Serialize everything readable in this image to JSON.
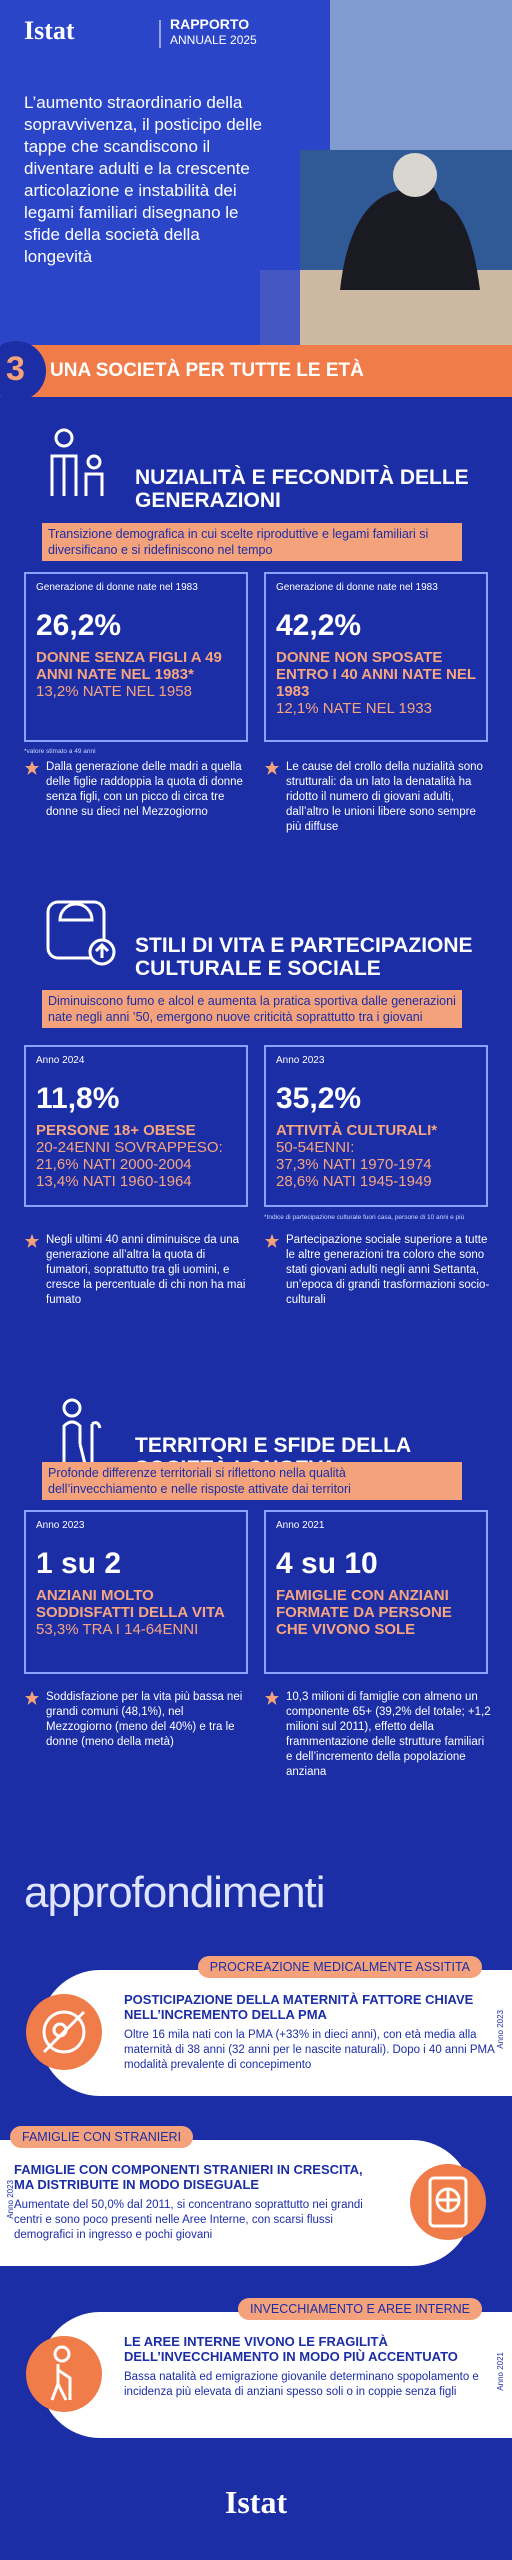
{
  "header": {
    "logo": "Istat",
    "report_title": "RAPPORTO",
    "report_subtitle": "ANNUALE 2025",
    "intro": "L’aumento straordinario della sopravvivenza, il posticipo delle tappe che scandiscono il diventare adulti e la crescente articolazione e instabilità dei legami familiari disegnano le sfide della società della longevità"
  },
  "banner": {
    "number": "3",
    "title": "UNA SOCIETÀ PER TUTTE LE ETÀ"
  },
  "sections": [
    {
      "title": "NUZIALITÀ E FECONDITÀ DELLE GENERAZIONI",
      "subtitle": "Transizione demografica in cui scelte riproduttive e legami familiari si diversificano e si ridefiniscono nel tempo",
      "boxes": [
        {
          "label": "Generazione di donne nate nel 1983",
          "big": "26,2%",
          "headline": "DONNE SENZA FIGLI A 49 ANNI NATE NEL 1983*",
          "details": [
            "13,2% NATE NEL 1958"
          ]
        },
        {
          "label": "Generazione di donne nate nel 1983",
          "big": "42,2%",
          "headline": "DONNE NON SPOSATE ENTRO I 40 ANNI NATE NEL 1983",
          "details": [
            "12,1% NATE NEL 1933"
          ]
        }
      ],
      "footnote": "*valore stimato a 49 anni",
      "bullets": [
        "Dalla generazione delle madri a quella delle figlie raddoppia la quota di donne senza figli, con un picco di circa tre donne su dieci nel Mezzogiorno",
        "Le cause del crollo della nuzialità sono strutturali: da un lato la denatalità ha ridotto il numero di giovani adulti, dall’altro le unioni libere sono sempre più diffuse"
      ]
    },
    {
      "title": "STILI DI VITA E PARTECIPAZIONE CULTURALE E SOCIALE",
      "subtitle": "Diminuiscono fumo e alcol e aumenta la pratica sportiva dalle generazioni nate negli anni ’50, emergono nuove criticità soprattutto tra i giovani",
      "boxes": [
        {
          "label": "Anno 2024",
          "big": "11,8%",
          "headline": "PERSONE 18+ OBESE",
          "details": [
            "20-24ENNI SOVRAPPESO:",
            "21,6% NATI 2000-2004",
            "13,4% NATI 1960-1964"
          ]
        },
        {
          "label": "Anno 2023",
          "big": "35,2%",
          "headline": "ATTIVITÀ CULTURALI*",
          "details": [
            "50-54ENNI:",
            "37,3% NATI 1970-1974",
            "28,6% NATI 1945-1949"
          ]
        }
      ],
      "footnote": "*Indice di partecipazione culturale fuori casa, persone di 10 anni e più",
      "bullets": [
        "Negli ultimi 40 anni diminuisce da una generazione all’altra la quota di fumatori, soprattutto tra gli uomini, e cresce la percentuale di chi non ha mai fumato",
        "Partecipazione sociale superiore a tutte le altre generazioni tra coloro che sono stati giovani adulti negli anni Settanta, un’epoca di grandi trasformazioni socio-culturali"
      ]
    },
    {
      "title": "TERRITORI E SFIDE DELLA SOCIETÀ LONGEVA",
      "subtitle": "Profonde differenze territoriali si riflettono nella qualità dell’invecchiamento e nelle risposte attivate dai territori",
      "boxes": [
        {
          "label": "Anno 2023",
          "big": "1 su 2",
          "headline": "ANZIANI MOLTO SODDISFATTI DELLA VITA",
          "details": [
            "53,3% TRA I 14-64ENNI"
          ]
        },
        {
          "label": "Anno 2021",
          "big": "4 su 10",
          "headline": "FAMIGLIE CON ANZIANI FORMATE DA PERSONE CHE VIVONO SOLE",
          "details": []
        }
      ],
      "bullets": [
        "Soddisfazione per la vita più bassa nei grandi comuni (48,1%), nel Mezzogiorno (meno del 40%) e tra le donne (meno della metà)",
        "10,3 milioni di famiglie con almeno un componente 65+ (39,2% del totale; +1,2 milioni sul 2011), effetto della frammentazione delle strutture familiari e dell’incremento della popolazione anziana"
      ]
    }
  ],
  "approfondimenti": {
    "title": "approfondimenti",
    "cards": [
      {
        "tag": "PROCREAZIONE MEDICALMENTE ASSITITA",
        "year": "Anno 2023",
        "title": "POSTICIPAZIONE DELLA MATERNITÀ FATTORE CHIAVE NELL’INCREMENTO DELLA PMA",
        "text": "Oltre 16 mila nati con la PMA (+33% in dieci anni), con età media alla maternità di 38 anni (32 anni per le nascite naturali). Dopo i 40 anni PMA modalità prevalente di concepimento"
      },
      {
        "tag": "FAMIGLIE CON STRANIERI",
        "year": "Anno 2023",
        "title": "FAMIGLIE CON COMPONENTI STRANIERI IN CRESCITA, MA DISTRIBUITE IN MODO DISEGUALE",
        "text": "Aumentate del 50,0% dal 2011, si concentrano soprattutto nei grandi centri e sono poco presenti nelle Aree Interne, con scarsi flussi demografici in ingresso e pochi giovani"
      },
      {
        "tag": "INVECCHIAMENTO E AREE INTERNE",
        "year": "Anno 2021",
        "title": "LE AREE INTERNE VIVONO LE FRAGILITÀ DELL’INVECCHIAMENTO IN MODO PIÙ ACCENTUATO",
        "text": "Bassa natalità ed emigrazione giovanile determinano spopolamento e incidenza più elevata di anziani spesso soli o in coppie senza figli"
      }
    ]
  },
  "footer": {
    "logo": "Istat"
  }
}
